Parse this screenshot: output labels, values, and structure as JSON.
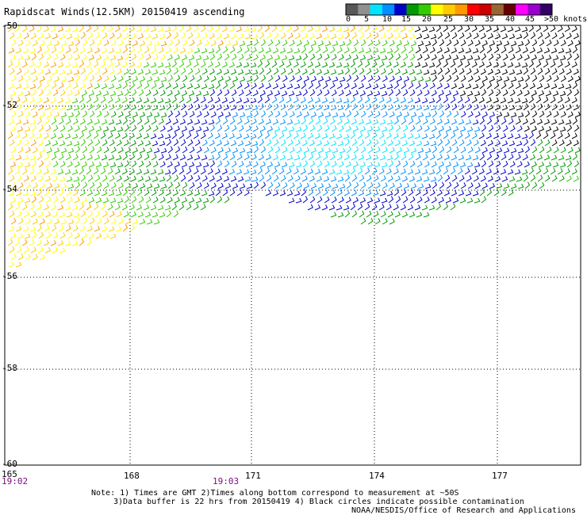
{
  "title": "Rapidscat Winds(12.5KM) 20150419 ascending",
  "colorbar": {
    "labels": [
      "0",
      "5",
      "10",
      "15",
      "20",
      "25",
      "30",
      "35",
      "40",
      "45",
      ">50 knots"
    ],
    "colors": [
      "#585858",
      "#909090",
      "#00e5ff",
      "#0090ff",
      "#0000cc",
      "#009900",
      "#33cc00",
      "#ffff00",
      "#ffcc00",
      "#ff9900",
      "#ff0000",
      "#cc0000",
      "#996633",
      "#660000",
      "#ff00ff",
      "#9900cc",
      "#330066"
    ]
  },
  "map": {
    "lon_ticks": [
      "165",
      "168",
      "171",
      "174",
      "177"
    ],
    "lat_ticks": [
      "-50",
      "-52",
      "-54",
      "-56",
      "-58",
      "-60"
    ],
    "times": [
      "19:02",
      "19:03"
    ]
  },
  "notes": {
    "line1": "Note: 1) Times are GMT 2)Times along bottom correspond to measurement at ~50S",
    "line2": "3)Data buffer is 22 hrs from 20150419 4) Black circles indicate possible contamination",
    "line3": "NOAA/NESDIS/Office of Research and Applications"
  },
  "colors": {
    "speed_scale": [
      "#000000",
      "#0000cc",
      "#0090ff",
      "#00e5ff",
      "#009900",
      "#33cc00",
      "#ffcc00",
      "#ffff00",
      "#ff9900",
      "#cc3300"
    ]
  }
}
